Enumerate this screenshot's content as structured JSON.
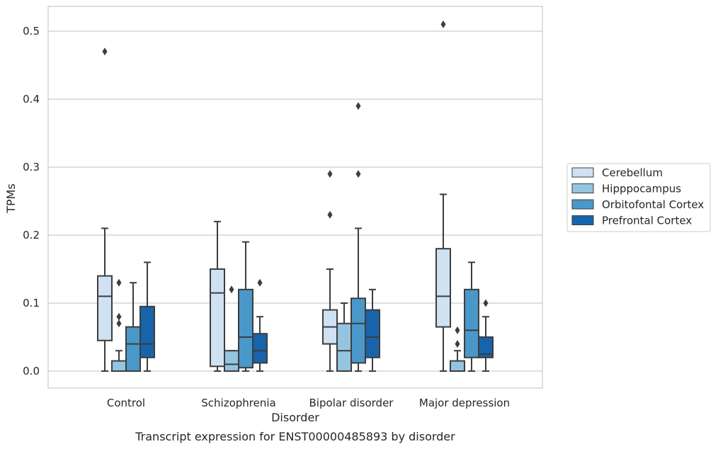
{
  "chart_data": {
    "type": "box",
    "xlabel": "Disorder",
    "ylabel": "TPMs",
    "caption": "Transcript expression for ENST00000485893 by disorder",
    "ylim": [
      -0.025,
      0.54
    ],
    "yticks": [
      0.0,
      0.1,
      0.2,
      0.3,
      0.4,
      0.5
    ],
    "ytick_labels": [
      "0.0",
      "0.1",
      "0.2",
      "0.3",
      "0.4",
      "0.5"
    ],
    "grid": "horizontal",
    "legend_position": "right",
    "categories": [
      "Control",
      "Schizophrenia",
      "Bipolar disorder",
      "Major depression"
    ],
    "series": [
      {
        "name": "Cerebellum",
        "color": "#d0e1f2",
        "boxes": [
          {
            "whislo": 0.0,
            "q1": 0.045,
            "med": 0.11,
            "q3": 0.14,
            "whishi": 0.21,
            "fliers": [
              0.47
            ]
          },
          {
            "whislo": 0.0,
            "q1": 0.007,
            "med": 0.115,
            "q3": 0.15,
            "whishi": 0.22,
            "fliers": []
          },
          {
            "whislo": 0.0,
            "q1": 0.04,
            "med": 0.065,
            "q3": 0.09,
            "whishi": 0.15,
            "fliers": [
              0.23,
              0.29
            ]
          },
          {
            "whislo": 0.0,
            "q1": 0.065,
            "med": 0.11,
            "q3": 0.18,
            "whishi": 0.26,
            "fliers": [
              0.51
            ]
          }
        ]
      },
      {
        "name": "Hipppocampus",
        "color": "#94c4df",
        "boxes": [
          {
            "whislo": 0.0,
            "q1": 0.0,
            "med": 0.0,
            "q3": 0.015,
            "whishi": 0.03,
            "fliers": [
              0.07,
              0.08,
              0.13
            ]
          },
          {
            "whislo": 0.0,
            "q1": 0.0,
            "med": 0.01,
            "q3": 0.03,
            "whishi": 0.03,
            "fliers": [
              0.12
            ]
          },
          {
            "whislo": 0.0,
            "q1": 0.0,
            "med": 0.03,
            "q3": 0.07,
            "whishi": 0.1,
            "fliers": []
          },
          {
            "whislo": 0.0,
            "q1": 0.0,
            "med": 0.0,
            "q3": 0.015,
            "whishi": 0.03,
            "fliers": [
              0.04,
              0.06
            ]
          }
        ]
      },
      {
        "name": "Orbitofontal Cortex",
        "color": "#4a98c9",
        "boxes": [
          {
            "whislo": 0.0,
            "q1": 0.0,
            "med": 0.04,
            "q3": 0.065,
            "whishi": 0.13,
            "fliers": []
          },
          {
            "whislo": 0.0,
            "q1": 0.005,
            "med": 0.05,
            "q3": 0.12,
            "whishi": 0.19,
            "fliers": []
          },
          {
            "whislo": 0.0,
            "q1": 0.012,
            "med": 0.07,
            "q3": 0.107,
            "whishi": 0.21,
            "fliers": [
              0.29,
              0.39
            ]
          },
          {
            "whislo": 0.0,
            "q1": 0.02,
            "med": 0.06,
            "q3": 0.12,
            "whishi": 0.16,
            "fliers": []
          }
        ]
      },
      {
        "name": "Prefrontal Cortex",
        "color": "#1764ab",
        "boxes": [
          {
            "whislo": 0.0,
            "q1": 0.02,
            "med": 0.04,
            "q3": 0.095,
            "whishi": 0.16,
            "fliers": []
          },
          {
            "whislo": 0.0,
            "q1": 0.012,
            "med": 0.03,
            "q3": 0.055,
            "whishi": 0.08,
            "fliers": [
              0.13
            ]
          },
          {
            "whislo": 0.0,
            "q1": 0.02,
            "med": 0.05,
            "q3": 0.09,
            "whishi": 0.12,
            "fliers": []
          },
          {
            "whislo": 0.0,
            "q1": 0.02,
            "med": 0.025,
            "q3": 0.05,
            "whishi": 0.08,
            "fliers": [
              0.1
            ]
          }
        ]
      }
    ]
  }
}
